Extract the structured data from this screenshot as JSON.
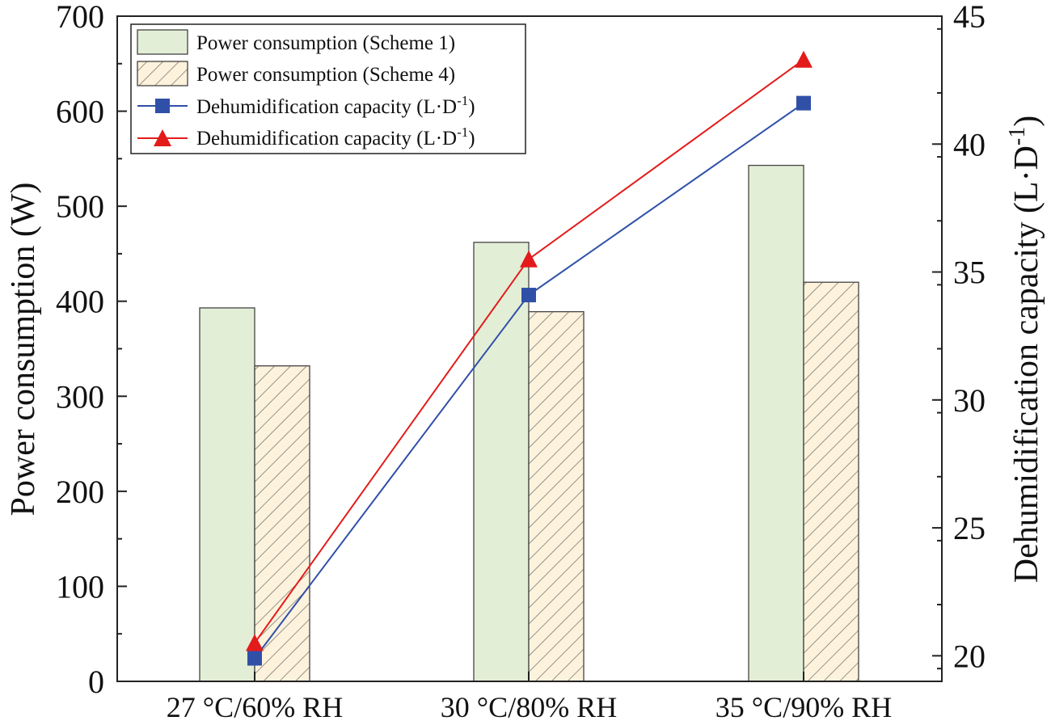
{
  "chart_data": {
    "type": "bar+line",
    "categories": [
      "27 °C/60% RH",
      "30 °C/80% RH",
      "35 °C/90% RH"
    ],
    "bars": [
      {
        "name": "Power consumption (Scheme 1)",
        "values": [
          393,
          462,
          543
        ],
        "fill": "#e3eed6",
        "pattern": "solid"
      },
      {
        "name": "Power consumption (Scheme 4)",
        "values": [
          332,
          389,
          420
        ],
        "fill": "#fdf2dc",
        "pattern": "hatch"
      }
    ],
    "lines": [
      {
        "name_prefix": "Dehumidification capacity (L·D",
        "superscript": "-1",
        "name_suffix": ")",
        "values": [
          19.9,
          34.1,
          41.6
        ],
        "color": "#3050a8",
        "marker": "square"
      },
      {
        "name_prefix": "Dehumidification capacity (L·D",
        "superscript": "-1",
        "name_suffix": ")",
        "values": [
          20.5,
          35.5,
          43.3
        ],
        "color": "#e31b1b",
        "marker": "triangle"
      }
    ],
    "left_axis": {
      "label": "Power consumption (W)",
      "ylim": [
        0,
        700
      ],
      "ticks": [
        "0",
        "100",
        "200",
        "300",
        "400",
        "500",
        "600",
        "700"
      ]
    },
    "right_axis": {
      "label_prefix": "Dehumidification capacity (L·D",
      "label_superscript": "-1",
      "label_suffix": ")",
      "ylim": [
        19,
        45
      ],
      "ticks": [
        "20",
        "25",
        "30",
        "35",
        "40",
        "45"
      ]
    },
    "legend_position": "top-left",
    "grid": false
  }
}
